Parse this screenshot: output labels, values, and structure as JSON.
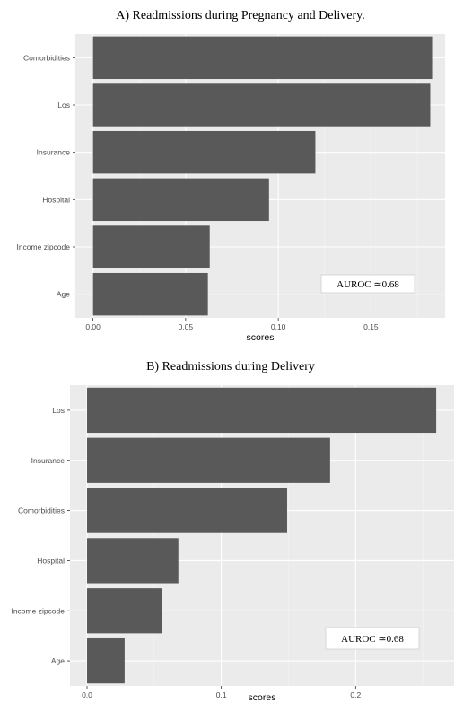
{
  "chart_data": [
    {
      "type": "bar",
      "orientation": "horizontal",
      "title": "A)  Readmissions during Pregnancy and Delivery.",
      "xlabel": "scores",
      "ylabel": "",
      "categories": [
        "Comorbidities",
        "Los",
        "Insurance",
        "Hospital",
        "Income zipcode",
        "Age"
      ],
      "values": [
        0.183,
        0.182,
        0.12,
        0.095,
        0.063,
        0.062
      ],
      "x_ticks": [
        0.0,
        0.05,
        0.1,
        0.15
      ],
      "x_tick_labels": [
        "0.00",
        "0.05",
        "0.10",
        "0.15"
      ],
      "xlim": [
        -0.0095,
        0.19
      ],
      "annotation": "AUROC ≃0.68",
      "grid": true,
      "bar_color": "#595959",
      "panel_color": "#ebebeb"
    },
    {
      "type": "bar",
      "orientation": "horizontal",
      "title": "B) Readmissions during Delivery",
      "xlabel": "scores",
      "ylabel": "",
      "categories": [
        "Los",
        "Insurance",
        "Comorbidities",
        "Hospital",
        "Income zipcode",
        "Age"
      ],
      "values": [
        0.26,
        0.181,
        0.149,
        0.068,
        0.056,
        0.028
      ],
      "x_ticks": [
        0.0,
        0.1,
        0.2
      ],
      "x_tick_labels": [
        "0.0",
        "0.1",
        "0.2"
      ],
      "xlim": [
        -0.0127,
        0.2733
      ],
      "annotation": "AUROC ≃0.68",
      "grid": true,
      "bar_color": "#595959",
      "panel_color": "#ebebeb"
    }
  ]
}
